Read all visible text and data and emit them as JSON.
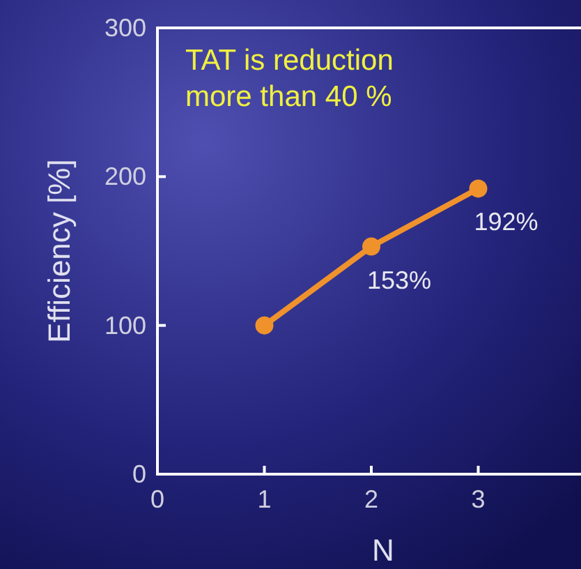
{
  "chart_data": {
    "type": "line",
    "xlabel": "N",
    "ylabel": "Efficiency [%]",
    "x": [
      1,
      2,
      3
    ],
    "series": [
      {
        "color": "#f0922c",
        "values": [
          100,
          153,
          192
        ],
        "value_labels": [
          null,
          "153%",
          "192%"
        ]
      }
    ],
    "xlim": [
      0,
      4
    ],
    "xticks": [
      0,
      1,
      2,
      3
    ],
    "ylim": [
      0,
      300
    ],
    "yticks": [
      0,
      100,
      200,
      300
    ],
    "marker": "circle",
    "annotations": [
      "TAT is reduction\nmore than 40 %"
    ]
  }
}
